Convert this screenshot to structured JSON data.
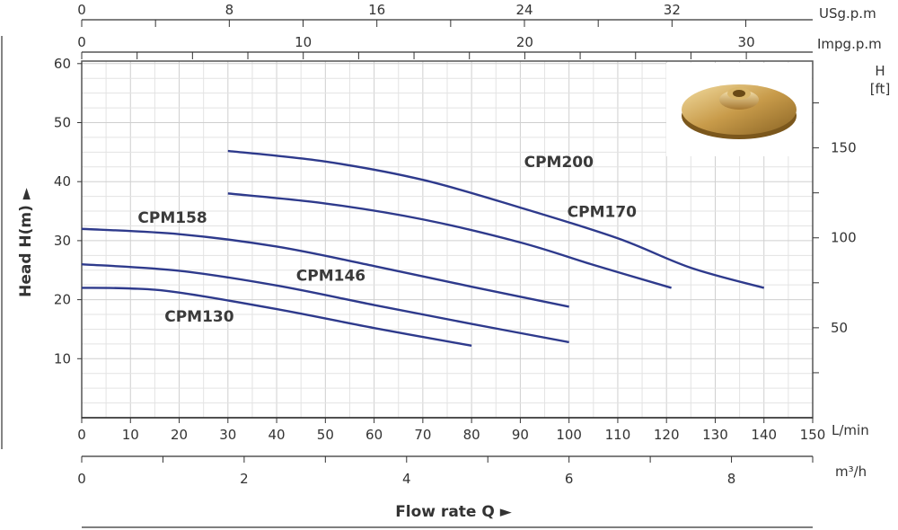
{
  "chart_data": {
    "type": "line",
    "title": "",
    "xlabel": "Flow rate Q ►",
    "ylabel": "Head H(m) ►",
    "x_unit": "L/min",
    "xlim": [
      0,
      150
    ],
    "ylim": [
      0,
      61
    ],
    "x_ticks": [
      "0",
      "10",
      "20",
      "30",
      "40",
      "50",
      "60",
      "70",
      "80",
      "90",
      "100",
      "110",
      "120",
      "130",
      "140",
      "150"
    ],
    "y_ticks": [
      "10",
      "20",
      "30",
      "40",
      "50",
      "60"
    ],
    "grid": true,
    "series": [
      {
        "name": "CPM200",
        "x": [
          30,
          50,
          70,
          90,
          110,
          125,
          140
        ],
        "y": [
          45.2,
          43.4,
          40.3,
          35.6,
          30.4,
          25.4,
          22.0
        ]
      },
      {
        "name": "CPM170",
        "x": [
          30,
          50,
          70,
          90,
          105,
          121
        ],
        "y": [
          38.0,
          36.3,
          33.6,
          29.7,
          25.9,
          22.0
        ]
      },
      {
        "name": "CPM158",
        "x": [
          0,
          20,
          40,
          60,
          80,
          100
        ],
        "y": [
          32.0,
          31.1,
          29.0,
          25.7,
          22.2,
          18.8
        ]
      },
      {
        "name": "CPM146",
        "x": [
          0,
          20,
          40,
          60,
          80,
          100
        ],
        "y": [
          26.0,
          24.9,
          22.4,
          19.1,
          15.9,
          12.8
        ]
      },
      {
        "name": "CPM130",
        "x": [
          0,
          10,
          20,
          40,
          60,
          80
        ],
        "y": [
          22.0,
          21.9,
          21.2,
          18.4,
          15.2,
          12.2
        ]
      }
    ],
    "series_color": "#2e3a8c",
    "secondary_axes": {
      "usgpm": {
        "unit": "USg.p.m",
        "ticks": [
          "0",
          "8",
          "16",
          "24",
          "32"
        ]
      },
      "impgpm": {
        "unit": "Impg.p.m",
        "ticks": [
          "0",
          "10",
          "20",
          "30"
        ]
      },
      "head_ft": {
        "unit": "H [ft]",
        "ticks": [
          "50",
          "100",
          "150"
        ]
      },
      "m3h": {
        "unit": "m³/h",
        "ticks": [
          "0",
          "2",
          "4",
          "6",
          "8"
        ]
      }
    },
    "inset_image": "brass-impeller"
  }
}
